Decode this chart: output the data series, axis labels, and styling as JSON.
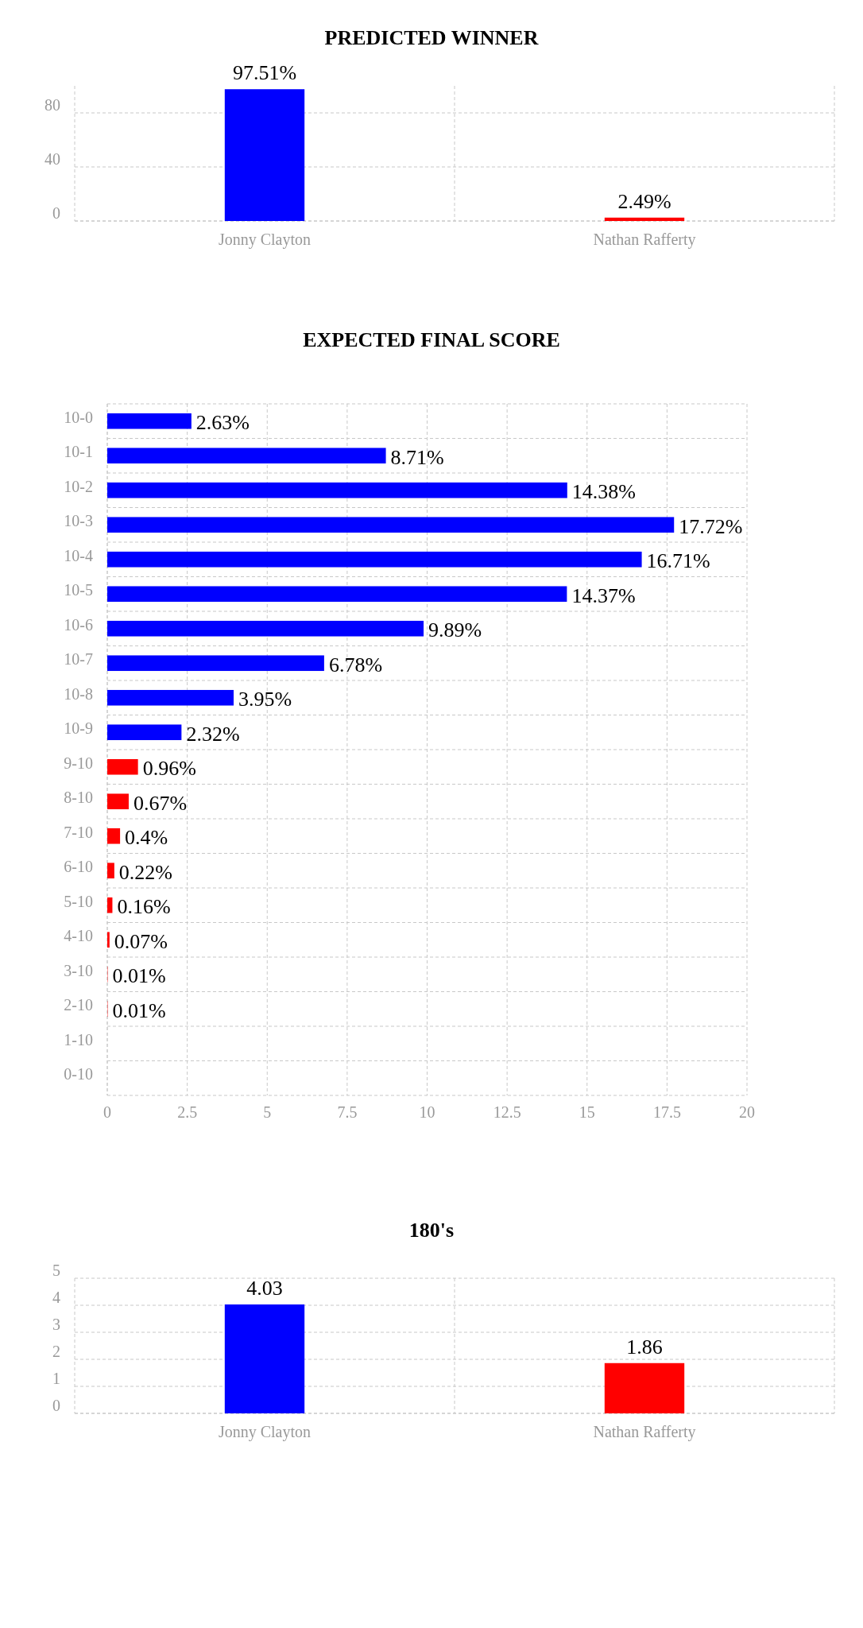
{
  "chart_data": [
    {
      "type": "bar",
      "title": "PREDICTED WINNER",
      "categories": [
        "Jonny Clayton",
        "Nathan Rafferty"
      ],
      "values": [
        97.51,
        2.49
      ],
      "colors": [
        "#0000ff",
        "#ff0000"
      ],
      "value_labels": [
        "97.51%",
        "2.49%"
      ],
      "ylim": [
        0,
        100
      ],
      "yticks": [
        0,
        40,
        80
      ],
      "grid": true
    },
    {
      "type": "bar",
      "title": "EXPECTED FINAL SCORE",
      "orientation": "horizontal",
      "categories": [
        "10-0",
        "10-1",
        "10-2",
        "10-3",
        "10-4",
        "10-5",
        "10-6",
        "10-7",
        "10-8",
        "10-9",
        "9-10",
        "8-10",
        "7-10",
        "6-10",
        "5-10",
        "4-10",
        "3-10",
        "2-10",
        "1-10",
        "0-10"
      ],
      "values": [
        2.63,
        8.71,
        14.38,
        17.72,
        16.71,
        14.37,
        9.89,
        6.78,
        3.95,
        2.32,
        0.96,
        0.67,
        0.4,
        0.22,
        0.16,
        0.07,
        0.01,
        0.01,
        0,
        0
      ],
      "colors": [
        "#0000ff",
        "#0000ff",
        "#0000ff",
        "#0000ff",
        "#0000ff",
        "#0000ff",
        "#0000ff",
        "#0000ff",
        "#0000ff",
        "#0000ff",
        "#ff0000",
        "#ff0000",
        "#ff0000",
        "#ff0000",
        "#ff0000",
        "#ff0000",
        "#ff0000",
        "#ff0000",
        "#ff0000",
        "#ff0000"
      ],
      "value_labels": [
        "2.63%",
        "8.71%",
        "14.38%",
        "17.72%",
        "16.71%",
        "14.37%",
        "9.89%",
        "6.78%",
        "3.95%",
        "2.32%",
        "0.96%",
        "0.67%",
        "0.4%",
        "0.22%",
        "0.16%",
        "0.07%",
        "0.01%",
        "0.01%",
        null,
        null
      ],
      "xlim": [
        0,
        20
      ],
      "xticks": [
        0,
        2.5,
        5,
        7.5,
        10,
        12.5,
        15,
        17.5,
        20
      ],
      "grid": true
    },
    {
      "type": "bar",
      "title": "180's",
      "categories": [
        "Jonny Clayton",
        "Nathan Rafferty"
      ],
      "values": [
        4.03,
        1.86
      ],
      "colors": [
        "#0000ff",
        "#ff0000"
      ],
      "data_labels": true,
      "ylim": [
        0,
        5
      ],
      "yticks": [
        0,
        1,
        2,
        3,
        4,
        5
      ],
      "grid": true
    }
  ]
}
